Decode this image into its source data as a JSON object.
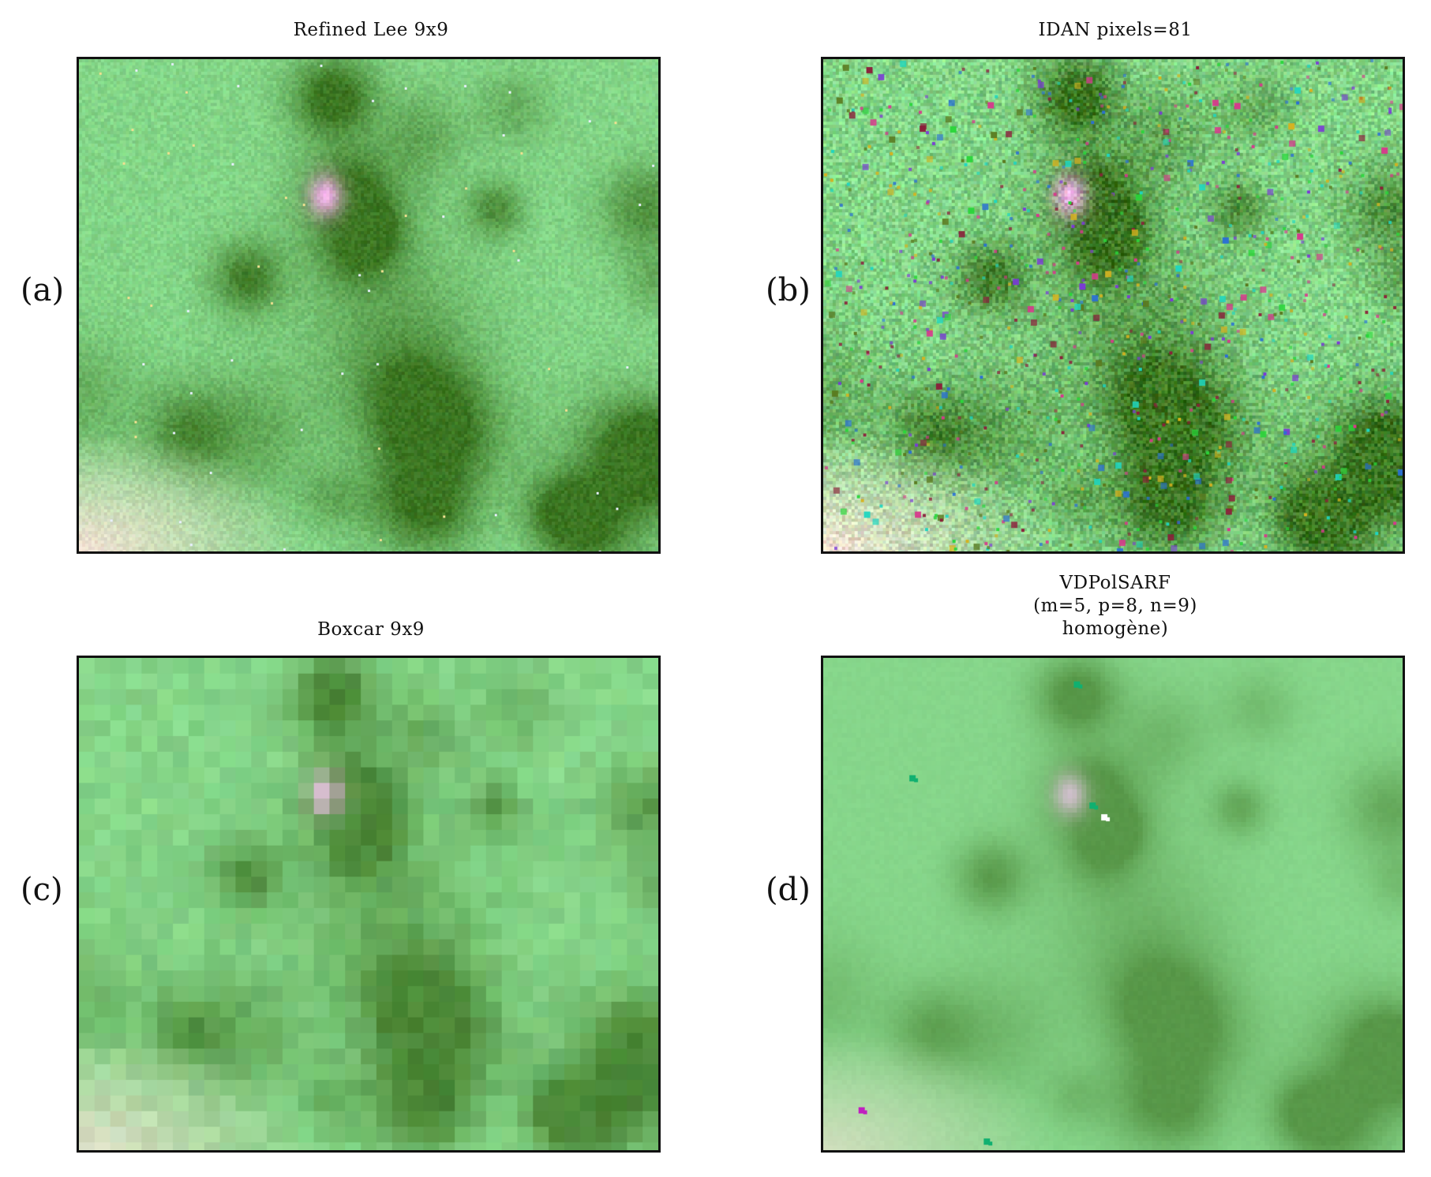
{
  "figure": {
    "panels": [
      {
        "label": "(a)",
        "title_lines": [
          "Refined Lee 9x9"
        ],
        "texture": "refined-lee"
      },
      {
        "label": "(b)",
        "title_lines": [
          "IDAN pixels=81"
        ],
        "texture": "idan"
      },
      {
        "label": "(c)",
        "title_lines": [
          "Boxcar 9x9"
        ],
        "texture": "boxcar"
      },
      {
        "label": "(d)",
        "title_lines": [
          "VDPolSARF",
          "(m=5, p=8, n=9)",
          "homogène)"
        ],
        "texture": "vdpolsarf"
      }
    ],
    "colors": {
      "vegetation_green": "#7fd07f",
      "dark_olive": "#556b2f",
      "pink_target": "#f0a8e0",
      "bright_corner": "#f4e6d8",
      "frame": "#111111"
    }
  }
}
